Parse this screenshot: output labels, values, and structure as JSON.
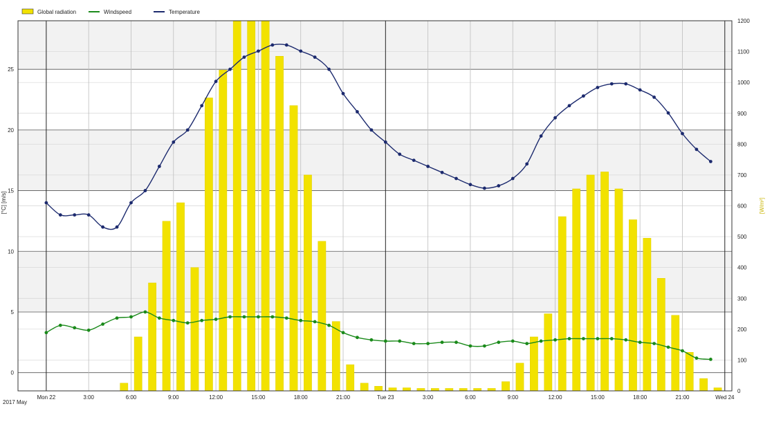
{
  "chart_data": {
    "type": "bar+line",
    "legend": {
      "placement": "top-left",
      "entries": [
        {
          "name": "Global radiation",
          "color": "#f2e200",
          "kind": "bar"
        },
        {
          "name": "Windspeed",
          "color": "#1a8a1a",
          "kind": "line"
        },
        {
          "name": "Temperature",
          "color": "#1c2a6e",
          "kind": "line"
        }
      ]
    },
    "y_left": {
      "label": "[°C]  [m/s]",
      "ticks": [
        0,
        5,
        10,
        15,
        20,
        25
      ],
      "range": [
        -1.5,
        29
      ]
    },
    "y_right": {
      "label": "[W/m²]",
      "ticks": [
        0,
        100,
        200,
        300,
        400,
        500,
        600,
        700,
        800,
        900,
        1000,
        1100,
        1200
      ],
      "range": [
        0,
        1200
      ]
    },
    "x_axis": {
      "range_hours": [
        -2,
        48.5
      ],
      "ticks": [
        {
          "hour": 0,
          "label": "Mon 22"
        },
        {
          "hour": 3,
          "label": "3:00"
        },
        {
          "hour": 6,
          "label": "6:00"
        },
        {
          "hour": 9,
          "label": "9:00"
        },
        {
          "hour": 12,
          "label": "12:00"
        },
        {
          "hour": 15,
          "label": "15:00"
        },
        {
          "hour": 18,
          "label": "18:00"
        },
        {
          "hour": 21,
          "label": "21:00"
        },
        {
          "hour": 24,
          "label": "Tue 23"
        },
        {
          "hour": 27,
          "label": "3:00"
        },
        {
          "hour": 30,
          "label": "6:00"
        },
        {
          "hour": 33,
          "label": "9:00"
        },
        {
          "hour": 36,
          "label": "12:00"
        },
        {
          "hour": 39,
          "label": "15:00"
        },
        {
          "hour": 42,
          "label": "18:00"
        },
        {
          "hour": 45,
          "label": "21:00"
        },
        {
          "hour": 48,
          "label": "Wed 24"
        }
      ],
      "footer": "2017 May"
    },
    "series": [
      {
        "name": "Global radiation",
        "x": [
          0.5,
          1.5,
          2.5,
          3.5,
          4.5,
          5.5,
          6.5,
          7.5,
          8.5,
          9.5,
          10.5,
          11.5,
          12.5,
          13.5,
          14.5,
          15.5,
          16.5,
          17.5,
          18.5,
          19.5,
          20.5,
          21.5,
          22.5,
          23.5,
          24.5,
          25.5,
          26.5,
          27.5,
          28.5,
          29.5,
          30.5,
          31.5,
          32.5,
          33.5,
          34.5,
          35.5,
          36.5,
          37.5,
          38.5,
          39.5,
          40.5,
          41.5,
          42.5,
          43.5,
          44.5,
          45.5,
          46.5,
          47.5
        ],
        "values": [
          0,
          0,
          0,
          0,
          0,
          25,
          175,
          350,
          550,
          610,
          400,
          950,
          1040,
          1200,
          1200,
          1200,
          1085,
          925,
          700,
          485,
          225,
          85,
          25,
          15,
          10,
          10,
          8,
          8,
          8,
          8,
          8,
          8,
          30,
          90,
          175,
          250,
          565,
          655,
          700,
          710,
          655,
          555,
          495,
          365,
          245,
          125,
          40,
          10
        ]
      },
      {
        "name": "Windspeed",
        "x": [
          0,
          1,
          2,
          3,
          4,
          5,
          6,
          7,
          8,
          9,
          10,
          11,
          12,
          13,
          14,
          15,
          16,
          17,
          18,
          19,
          20,
          21,
          22,
          23,
          24,
          25,
          26,
          27,
          28,
          29,
          30,
          31,
          32,
          33,
          34,
          35,
          36,
          37,
          38,
          39,
          40,
          41,
          42,
          43,
          44,
          45,
          46,
          47
        ],
        "values": [
          3.3,
          3.9,
          3.7,
          3.5,
          4.0,
          4.5,
          4.6,
          5.0,
          4.5,
          4.3,
          4.1,
          4.3,
          4.4,
          4.6,
          4.6,
          4.6,
          4.6,
          4.5,
          4.3,
          4.2,
          3.9,
          3.3,
          2.9,
          2.7,
          2.6,
          2.6,
          2.4,
          2.4,
          2.5,
          2.5,
          2.2,
          2.2,
          2.5,
          2.6,
          2.4,
          2.6,
          2.7,
          2.8,
          2.8,
          2.8,
          2.8,
          2.7,
          2.5,
          2.4,
          2.1,
          1.8,
          1.2,
          1.1
        ]
      },
      {
        "name": "Temperature",
        "x": [
          0,
          1,
          2,
          3,
          4,
          5,
          6,
          7,
          8,
          9,
          10,
          11,
          12,
          13,
          14,
          15,
          16,
          17,
          18,
          19,
          20,
          21,
          22,
          23,
          24,
          25,
          26,
          27,
          28,
          29,
          30,
          31,
          32,
          33,
          34,
          35,
          36,
          37,
          38,
          39,
          40,
          41,
          42,
          43,
          44,
          45,
          46,
          47
        ],
        "values": [
          14.0,
          13.0,
          13.0,
          13.0,
          12.0,
          12.0,
          14.0,
          15.0,
          17.0,
          19.0,
          20.0,
          22.0,
          24.0,
          25.0,
          26.0,
          26.5,
          27.0,
          27.0,
          26.5,
          26.0,
          25.0,
          23.0,
          21.5,
          20.0,
          19.0,
          18.0,
          17.5,
          17.0,
          16.5,
          16.0,
          15.5,
          15.2,
          15.4,
          16.0,
          17.2,
          19.5,
          21.0,
          22.0,
          22.8,
          23.5,
          23.8,
          23.8,
          23.3,
          22.7,
          21.4,
          19.7,
          18.4,
          17.4
        ]
      }
    ]
  }
}
